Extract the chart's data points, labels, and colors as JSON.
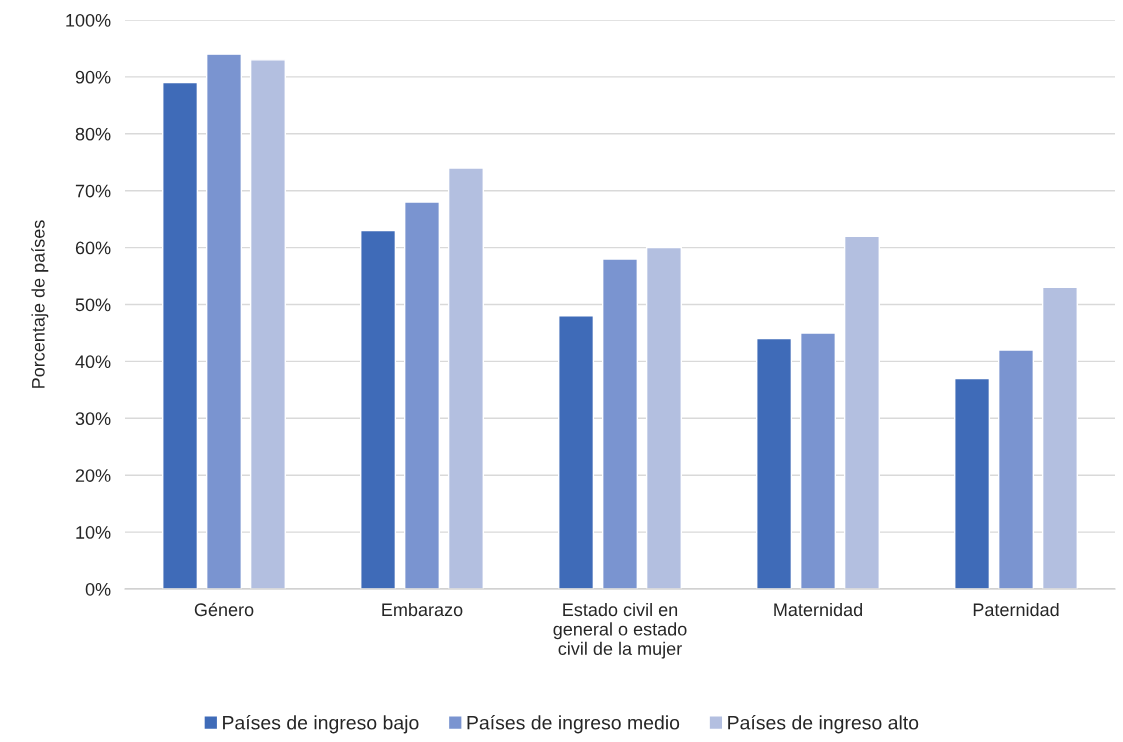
{
  "chart_data": {
    "type": "bar",
    "ylabel": "Porcentaje de países",
    "categories": [
      "Género",
      "Embarazo",
      "Estado civil en\ngeneral o estado\ncivil de la mujer",
      "Maternidad",
      "Paternidad"
    ],
    "series": [
      {
        "name": "Países de ingreso bajo",
        "color": "#3f6bb8",
        "values": [
          89,
          63,
          48,
          44,
          37
        ]
      },
      {
        "name": "Países de ingreso medio",
        "color": "#7a94d0",
        "values": [
          94,
          68,
          58,
          45,
          42
        ]
      },
      {
        "name": "Países de ingreso alto",
        "color": "#b3bfe0",
        "values": [
          93,
          74,
          60,
          62,
          53
        ]
      }
    ],
    "ylim": [
      0,
      100
    ],
    "yticks": [
      {
        "value": 0,
        "label": "0%"
      },
      {
        "value": 10,
        "label": "10%"
      },
      {
        "value": 20,
        "label": "20%"
      },
      {
        "value": 30,
        "label": "30%"
      },
      {
        "value": 40,
        "label": "40%"
      },
      {
        "value": 50,
        "label": "50%"
      },
      {
        "value": 60,
        "label": "60%"
      },
      {
        "value": 70,
        "label": "70%"
      },
      {
        "value": 80,
        "label": "80%"
      },
      {
        "value": 90,
        "label": "90%"
      },
      {
        "value": 100,
        "label": "100%"
      }
    ],
    "grid": "y",
    "legend": "bottom"
  }
}
